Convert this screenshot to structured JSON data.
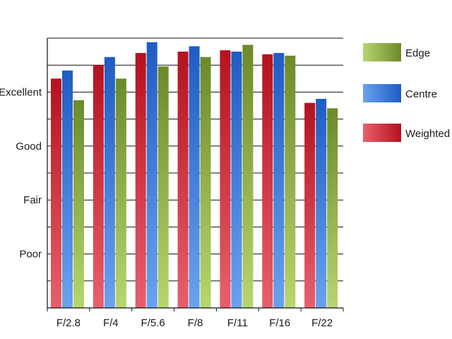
{
  "chart_data": {
    "type": "bar",
    "categories": [
      "F/2.8",
      "F/4",
      "F/5.6",
      "F/8",
      "F/11",
      "F/16",
      "F/22"
    ],
    "y_tick_labels": [
      "Poor",
      "Fair",
      "Good",
      "Excellent"
    ],
    "ylim": [
      0,
      10
    ],
    "y_tick_values": [
      2,
      4,
      6,
      8
    ],
    "grid_values": [
      1,
      2,
      3,
      4,
      5,
      6,
      7,
      8,
      9,
      10
    ],
    "grid": true,
    "legend_position": "right",
    "series": [
      {
        "name": "Weighted",
        "values": [
          8.5,
          9.0,
          9.45,
          9.5,
          9.55,
          9.4,
          7.6
        ],
        "color_light": "#e8606c",
        "color_dark": "#b5121f"
      },
      {
        "name": "Centre",
        "values": [
          8.8,
          9.3,
          9.85,
          9.7,
          9.5,
          9.45,
          7.75
        ],
        "color_light": "#6aa2ee",
        "color_dark": "#1f5cc4"
      },
      {
        "name": "Edge",
        "values": [
          7.7,
          8.5,
          8.95,
          9.3,
          9.75,
          9.35,
          7.4
        ],
        "color_light": "#b8d66e",
        "color_dark": "#6b8a2a"
      }
    ],
    "legend_order": [
      "Edge",
      "Centre",
      "Weighted"
    ]
  }
}
